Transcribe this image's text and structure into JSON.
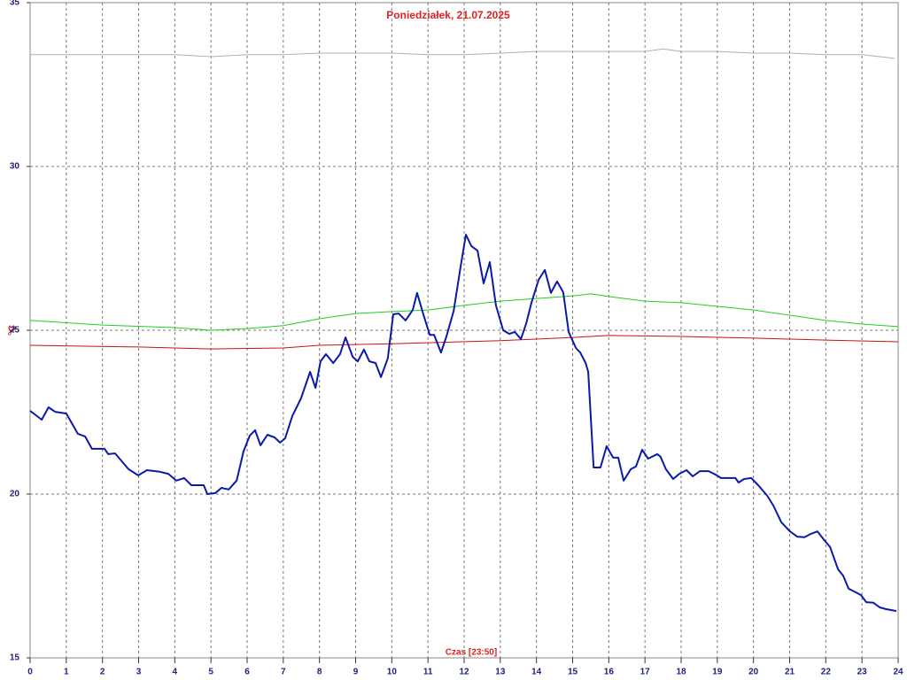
{
  "chart_data": {
    "type": "line",
    "title": "Poniedziałek, 21.07.2025",
    "ylabel": "°C",
    "xlabel": "Czas [23:50]",
    "xlim": [
      0,
      24
    ],
    "xticks": [
      0,
      1,
      2,
      3,
      4,
      5,
      6,
      7,
      8,
      9,
      10,
      11,
      12,
      13,
      14,
      15,
      16,
      17,
      18,
      19,
      20,
      21,
      22,
      23,
      24
    ],
    "ylim": [
      15,
      35
    ],
    "yticks": [
      15,
      20,
      25,
      30,
      35
    ],
    "grid": true,
    "series": [
      {
        "color": "#b0b0b0",
        "width": 1,
        "x": [
          0,
          1,
          2,
          3,
          4,
          5,
          6,
          7,
          8,
          9,
          10,
          11,
          12,
          13,
          14,
          15,
          16,
          17,
          17.5,
          18,
          19,
          20,
          21,
          22,
          23,
          23.9
        ],
        "values": [
          33.41,
          33.41,
          33.41,
          33.41,
          33.41,
          33.35,
          33.41,
          33.41,
          33.46,
          33.46,
          33.46,
          33.41,
          33.41,
          33.46,
          33.51,
          33.51,
          33.51,
          33.51,
          33.59,
          33.51,
          33.51,
          33.46,
          33.46,
          33.41,
          33.41,
          33.3
        ]
      },
      {
        "color": "#22cc22",
        "width": 1,
        "x": [
          0,
          2,
          4,
          5,
          6,
          7,
          8,
          9,
          10,
          11,
          12,
          13,
          14,
          15,
          15.5,
          16,
          17,
          18,
          19,
          20,
          21,
          22,
          23,
          24
        ],
        "values": [
          25.3,
          25.16,
          25.08,
          25.0,
          25.05,
          25.14,
          25.35,
          25.51,
          25.57,
          25.62,
          25.76,
          25.89,
          25.97,
          26.05,
          26.11,
          26.03,
          25.89,
          25.84,
          25.73,
          25.62,
          25.46,
          25.3,
          25.19,
          25.11
        ]
      },
      {
        "color": "#cc1111",
        "width": 1,
        "x": [
          0,
          3,
          5,
          7,
          8,
          10,
          13,
          15,
          16,
          18,
          20,
          22,
          24
        ],
        "values": [
          24.54,
          24.49,
          24.43,
          24.46,
          24.54,
          24.59,
          24.68,
          24.78,
          24.84,
          24.81,
          24.76,
          24.7,
          24.65
        ]
      },
      {
        "color": "#0a1aa8",
        "width": 2,
        "x": [
          0,
          0.32,
          0.51,
          0.69,
          1.0,
          1.32,
          1.52,
          1.71,
          2.06,
          2.16,
          2.35,
          2.72,
          2.99,
          3.23,
          3.58,
          3.82,
          4.04,
          4.26,
          4.46,
          4.8,
          4.9,
          5.12,
          5.29,
          5.49,
          5.71,
          5.9,
          6.07,
          6.22,
          6.37,
          6.56,
          6.76,
          6.91,
          7.05,
          7.25,
          7.49,
          7.74,
          7.89,
          8.03,
          8.18,
          8.38,
          8.57,
          8.72,
          8.92,
          9.06,
          9.23,
          9.38,
          9.55,
          9.7,
          9.89,
          10.04,
          10.19,
          10.38,
          10.58,
          10.7,
          10.87,
          11.05,
          11.17,
          11.36,
          11.51,
          11.71,
          11.9,
          12.05,
          12.2,
          12.37,
          12.54,
          12.71,
          12.88,
          13.08,
          13.25,
          13.4,
          13.57,
          13.72,
          13.86,
          14.06,
          14.23,
          14.4,
          14.57,
          14.74,
          14.89,
          15.09,
          15.21,
          15.36,
          15.43,
          15.58,
          15.77,
          15.94,
          16.12,
          16.26,
          16.41,
          16.61,
          16.75,
          16.92,
          17.09,
          17.34,
          17.43,
          17.58,
          17.78,
          17.95,
          18.15,
          18.32,
          18.52,
          18.76,
          18.96,
          19.1,
          19.5,
          19.59,
          19.74,
          19.94,
          20.13,
          20.38,
          20.55,
          20.77,
          21.01,
          21.21,
          21.41,
          21.58,
          21.77,
          21.94,
          22.12,
          22.34,
          22.48,
          22.63,
          22.83,
          22.97,
          23.12,
          23.32,
          23.49,
          23.66,
          23.95
        ],
        "values": [
          22.54,
          22.27,
          22.65,
          22.51,
          22.46,
          21.84,
          21.76,
          21.38,
          21.38,
          21.22,
          21.24,
          20.76,
          20.57,
          20.73,
          20.68,
          20.62,
          20.41,
          20.49,
          20.27,
          20.27,
          20.0,
          20.03,
          20.19,
          20.14,
          20.41,
          21.3,
          21.78,
          21.95,
          21.49,
          21.81,
          21.73,
          21.57,
          21.7,
          22.38,
          22.92,
          23.73,
          23.24,
          24.05,
          24.27,
          24.0,
          24.27,
          24.78,
          24.19,
          24.05,
          24.41,
          24.05,
          24.0,
          23.57,
          24.14,
          25.49,
          25.51,
          25.3,
          25.62,
          26.14,
          25.49,
          24.86,
          24.86,
          24.32,
          24.81,
          25.59,
          26.92,
          27.92,
          27.57,
          27.43,
          26.43,
          27.08,
          25.76,
          25.0,
          24.89,
          24.95,
          24.73,
          25.22,
          25.84,
          26.54,
          26.84,
          26.14,
          26.49,
          26.16,
          24.95,
          24.46,
          24.32,
          24.0,
          23.73,
          20.81,
          20.81,
          21.46,
          21.11,
          21.11,
          20.41,
          20.76,
          20.84,
          21.35,
          21.08,
          21.22,
          21.14,
          20.76,
          20.46,
          20.62,
          20.73,
          20.54,
          20.7,
          20.7,
          20.59,
          20.49,
          20.49,
          20.35,
          20.46,
          20.49,
          20.27,
          19.95,
          19.65,
          19.14,
          18.86,
          18.7,
          18.68,
          18.78,
          18.86,
          18.62,
          18.38,
          17.7,
          17.51,
          17.11,
          17.0,
          16.92,
          16.7,
          16.68,
          16.54,
          16.49,
          16.43
        ]
      }
    ]
  }
}
